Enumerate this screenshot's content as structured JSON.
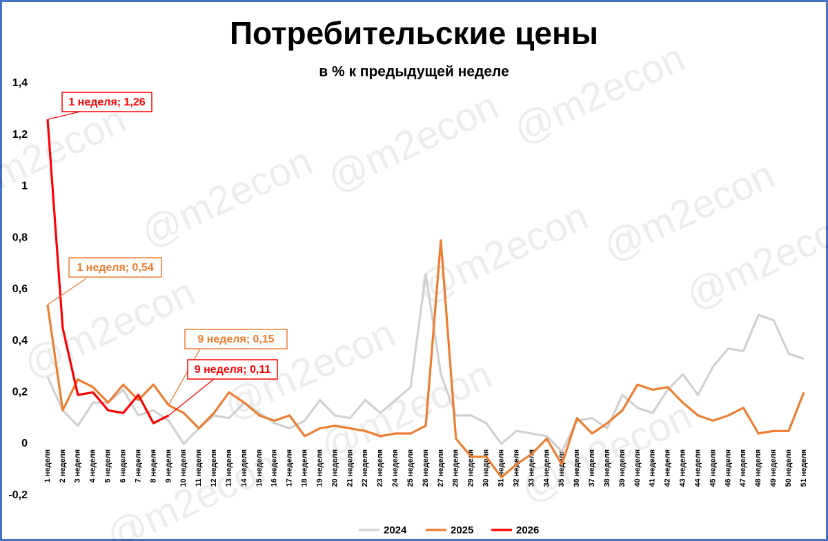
{
  "chart_data": {
    "type": "line",
    "title": "Потребительские цены",
    "subtitle": "в % к предыдущей неделе",
    "watermark": "@m2econ",
    "categories": [
      "1 неделя",
      "2 неделя",
      "3 неделя",
      "4 неделя",
      "5 неделя",
      "6 неделя",
      "7 неделя",
      "8 неделя",
      "9 неделя",
      "10 неделя",
      "11 неделя",
      "12 неделя",
      "13 неделя",
      "14 неделя",
      "15 неделя",
      "16 неделя",
      "17 неделя",
      "18 неделя",
      "19 неделя",
      "20 неделя",
      "21 неделя",
      "22 неделя",
      "23 неделя",
      "24 неделя",
      "25 неделя",
      "26 неделя",
      "27 неделя",
      "28 неделя",
      "29 неделя",
      "30 неделя",
      "31 неделя",
      "32 неделя",
      "33 неделя",
      "34 неделя",
      "35 неделя",
      "36 неделя",
      "37 неделя",
      "38 неделя",
      "39 неделя",
      "40 неделя",
      "41 неделя",
      "42 неделя",
      "43 неделя",
      "44 неделя",
      "45 неделя",
      "46 неделя",
      "47 неделя",
      "48 неделя",
      "49 неделя",
      "50 неделя",
      "51 неделя"
    ],
    "series": [
      {
        "name": "2024",
        "color": "#d0d0d0",
        "values": [
          0.26,
          0.13,
          0.07,
          0.16,
          0.16,
          0.21,
          0.11,
          0.13,
          0.09,
          0.0,
          0.06,
          0.11,
          0.1,
          0.16,
          0.12,
          0.08,
          0.06,
          0.09,
          0.17,
          0.11,
          0.1,
          0.17,
          0.12,
          0.17,
          0.22,
          0.66,
          0.27,
          0.11,
          0.11,
          0.08,
          0.0,
          0.05,
          0.04,
          0.03,
          -0.03,
          0.09,
          0.1,
          0.06,
          0.19,
          0.14,
          0.12,
          0.21,
          0.27,
          0.19,
          0.3,
          0.37,
          0.36,
          0.5,
          0.48,
          0.35,
          0.33
        ]
      },
      {
        "name": "2025",
        "color": "#ed7d31",
        "values": [
          0.54,
          0.13,
          0.25,
          0.22,
          0.16,
          0.23,
          0.17,
          0.23,
          0.15,
          0.12,
          0.06,
          0.12,
          0.2,
          0.16,
          0.11,
          0.09,
          0.11,
          0.03,
          0.06,
          0.07,
          0.06,
          0.05,
          0.03,
          0.04,
          0.04,
          0.07,
          0.79,
          0.02,
          -0.05,
          -0.05,
          -0.13,
          -0.08,
          -0.04,
          0.02,
          -0.08,
          0.1,
          0.04,
          0.08,
          0.13,
          0.23,
          0.21,
          0.22,
          0.16,
          0.11,
          0.09,
          0.11,
          0.14,
          0.04,
          0.05,
          0.05,
          0.2
        ]
      },
      {
        "name": "2026",
        "color": "#ff0000",
        "values": [
          1.26,
          0.45,
          0.19,
          0.2,
          0.13,
          0.12,
          0.19,
          0.08,
          0.11,
          null,
          null,
          null,
          null,
          null,
          null,
          null,
          null,
          null,
          null,
          null,
          null,
          null,
          null,
          null,
          null,
          null,
          null,
          null,
          null,
          null,
          null,
          null,
          null,
          null,
          null,
          null,
          null,
          null,
          null,
          null,
          null,
          null,
          null,
          null,
          null,
          null,
          null,
          null,
          null,
          null,
          null
        ]
      }
    ],
    "annotations": [
      {
        "text": "1 неделя; 1,26",
        "color": "#ff0000"
      },
      {
        "text": "1 неделя; 0,54",
        "color": "#ed7d31"
      },
      {
        "text": "9 неделя; 0,15",
        "color": "#ed7d31"
      },
      {
        "text": "9 неделя; 0,11",
        "color": "#ff0000"
      }
    ],
    "ylim": [
      -0.2,
      1.4
    ],
    "yticks": [
      {
        "value": -0.2,
        "label": "-0,2"
      },
      0,
      {
        "value": 0.2,
        "label": "0,2"
      },
      {
        "value": 0.4,
        "label": "0,4"
      },
      {
        "value": 0.6,
        "label": "0,6"
      },
      {
        "value": 0.8,
        "label": "0,8"
      },
      1,
      {
        "value": 1.2,
        "label": "1,2"
      },
      {
        "value": 1.4,
        "label": "1,4"
      }
    ],
    "grid": false,
    "legend": "bottom"
  }
}
